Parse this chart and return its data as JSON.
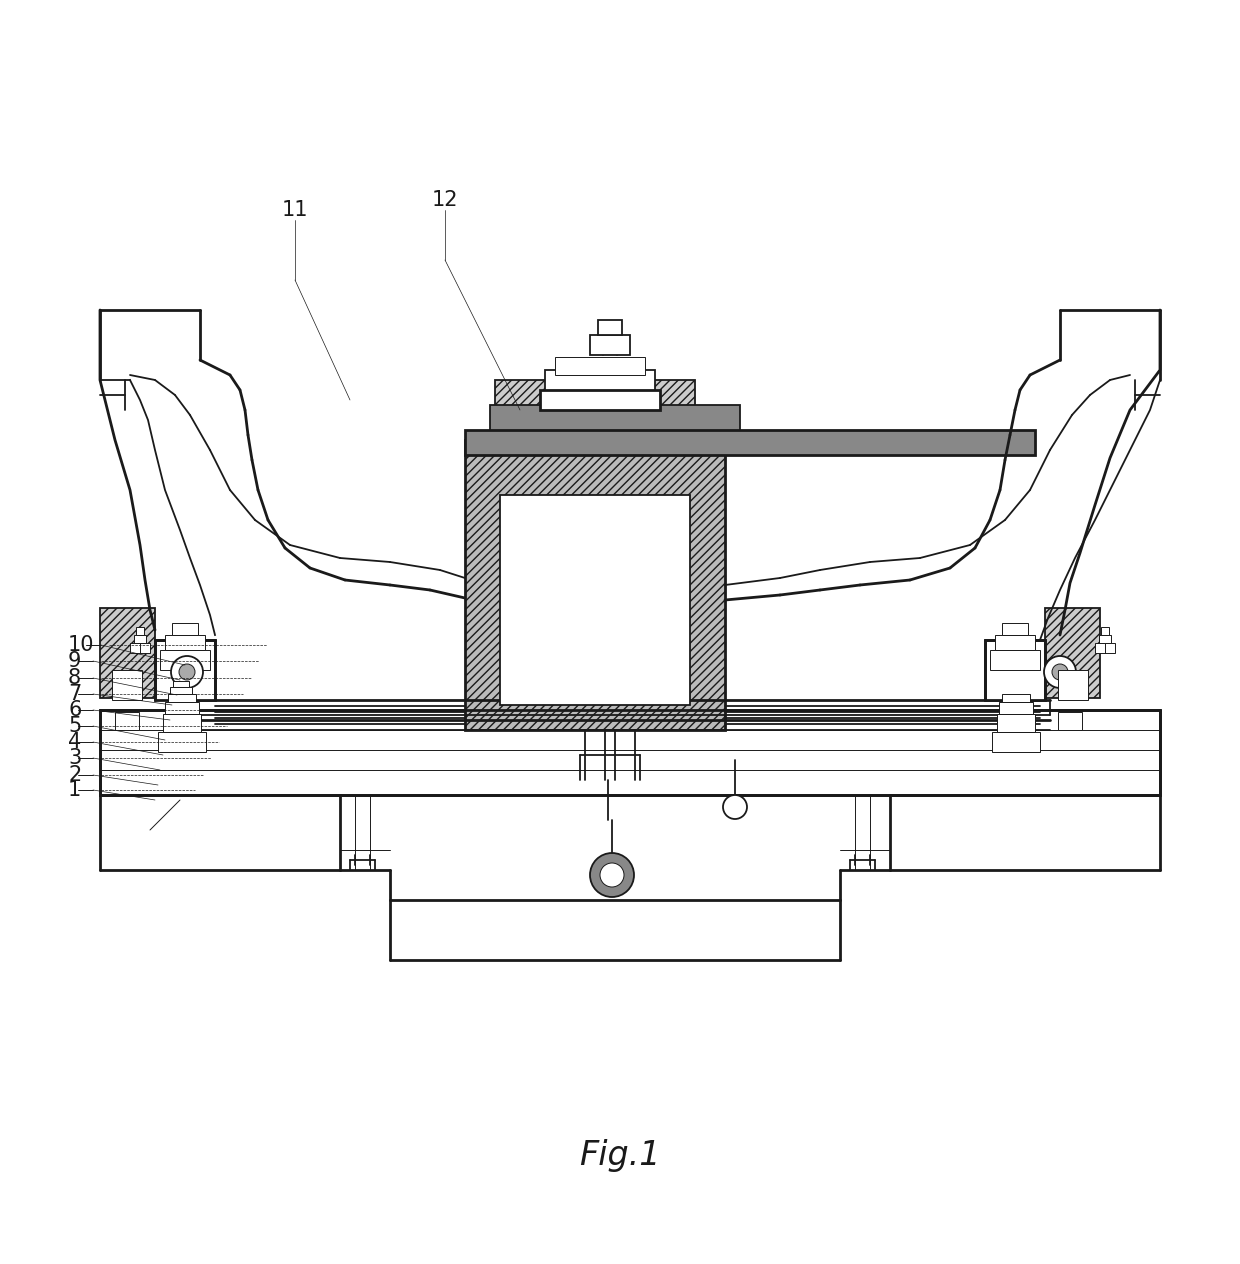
{
  "figure_label": "Fig.1",
  "background_color": "#ffffff",
  "line_color": "#1a1a1a",
  "hatch_color": "#555555",
  "figsize": [
    12.4,
    12.64
  ],
  "dpi": 100,
  "labels_left": [
    "1",
    "2",
    "3",
    "4",
    "5",
    "6",
    "7",
    "8",
    "9",
    "10"
  ],
  "labels_top": [
    "11",
    "12"
  ],
  "label_fontsize": 15
}
